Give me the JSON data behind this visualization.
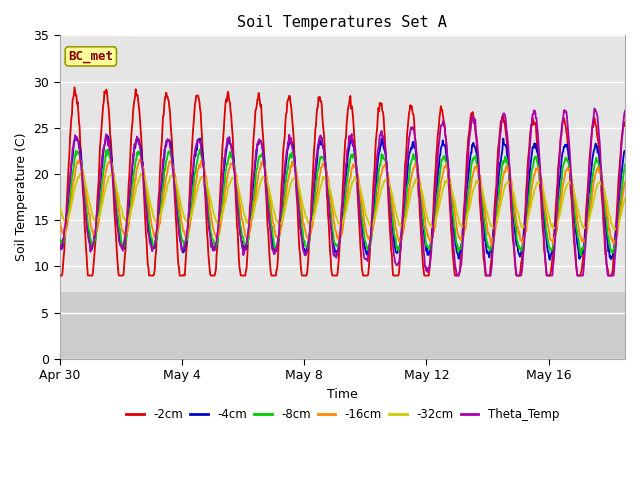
{
  "title": "Soil Temperatures Set A",
  "xlabel": "Time",
  "ylabel": "Soil Temperature (C)",
  "ylim": [
    0,
    35
  ],
  "yticks": [
    0,
    5,
    10,
    15,
    20,
    25,
    30,
    35
  ],
  "annotation": "BC_met",
  "series": {
    "-2cm": {
      "color": "#dd0000",
      "lw": 1.3
    },
    "-4cm": {
      "color": "#0000cc",
      "lw": 1.3
    },
    "-8cm": {
      "color": "#00cc00",
      "lw": 1.3
    },
    "-16cm": {
      "color": "#ff8800",
      "lw": 1.3
    },
    "-32cm": {
      "color": "#cccc00",
      "lw": 1.3
    },
    "Theta_Temp": {
      "color": "#aa00aa",
      "lw": 1.3
    }
  },
  "x_tick_labels": [
    "Apr 30",
    "May 4",
    "May 8",
    "May 12",
    "May 16"
  ],
  "x_tick_positions": [
    0,
    4,
    8,
    12,
    16
  ],
  "bg_color_plot": "#e5e5e5",
  "bg_color_below7": "#cccccc",
  "grid_color": "#ffffff",
  "annotation_bg": "#ffff99",
  "annotation_border": "#999900",
  "annotation_text_color": "#880000",
  "n_days": 18.5,
  "phase_2cm": 0.25,
  "phase_4cm": 0.3,
  "phase_8cm": 0.33,
  "phase_16cm": 0.38,
  "phase_32cm": 0.43,
  "phase_theta": 0.28
}
